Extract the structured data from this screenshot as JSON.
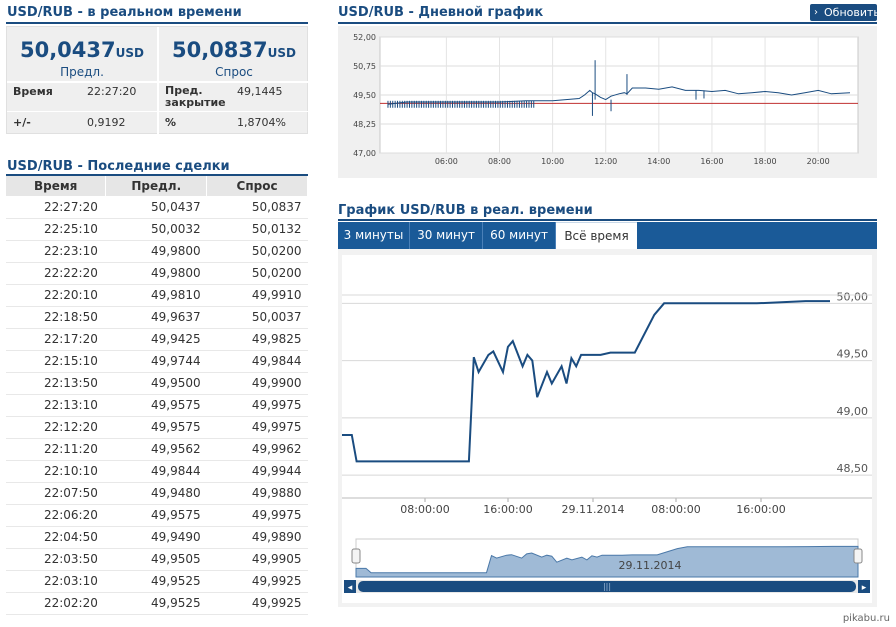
{
  "left": {
    "title_realtime": "USD/RUB - в реальном времени",
    "bid": {
      "value": "50,0437",
      "unit": "USD",
      "label": "Предл."
    },
    "ask": {
      "value": "50,0837",
      "unit": "USD",
      "label": "Спрос"
    },
    "time_label": "Время",
    "time_value": "22:27:20",
    "prev_close_label_1": "Пред.",
    "prev_close_label_2": "закрытие",
    "prev_close_value": "49,1445",
    "change_label": "+/-",
    "change_value": "0,9192",
    "pct_label": "%",
    "pct_value": "1,8704%",
    "title_trades": "USD/RUB - Последние сделки",
    "trades_headers": [
      "Время",
      "Предл.",
      "Спрос"
    ],
    "trades": [
      [
        "22:27:20",
        "50,0437",
        "50,0837"
      ],
      [
        "22:25:10",
        "50,0032",
        "50,0132"
      ],
      [
        "22:23:10",
        "49,9800",
        "50,0200"
      ],
      [
        "22:22:20",
        "49,9800",
        "50,0200"
      ],
      [
        "22:20:10",
        "49,9810",
        "49,9910"
      ],
      [
        "22:18:50",
        "49,9637",
        "50,0037"
      ],
      [
        "22:17:20",
        "49,9425",
        "49,9825"
      ],
      [
        "22:15:10",
        "49,9744",
        "49,9844"
      ],
      [
        "22:13:50",
        "49,9500",
        "49,9900"
      ],
      [
        "22:13:10",
        "49,9575",
        "49,9975"
      ],
      [
        "22:12:20",
        "49,9575",
        "49,9975"
      ],
      [
        "22:11:20",
        "49,9562",
        "49,9962"
      ],
      [
        "22:10:10",
        "49,9844",
        "49,9944"
      ],
      [
        "22:07:50",
        "49,9480",
        "49,9880"
      ],
      [
        "22:06:20",
        "49,9575",
        "49,9975"
      ],
      [
        "22:04:50",
        "49,9490",
        "49,9890"
      ],
      [
        "22:03:50",
        "49,9505",
        "49,9905"
      ],
      [
        "22:03:10",
        "49,9525",
        "49,9925"
      ],
      [
        "22:02:20",
        "49,9525",
        "49,9925"
      ]
    ]
  },
  "right": {
    "title_daily": "USD/RUB - Дневной график",
    "refresh_label": "Обновить",
    "title_realtime_chart": "График USD/RUB в реал. времени",
    "tabs": [
      "3 минуты",
      "30 минут",
      "60 минут",
      "Всё время"
    ],
    "active_tab": "Всё время",
    "navigator_date": "29.11.2014"
  },
  "chart_data": [
    {
      "type": "line",
      "y_ticks": [
        "52,00",
        "50,75",
        "49,50",
        "48,25",
        "47,00"
      ],
      "x_ticks": [
        "06:00",
        "08:00",
        "10:00",
        "12:00",
        "14:00",
        "16:00",
        "18:00",
        "20:00"
      ],
      "ylim": [
        47.0,
        52.0
      ],
      "reference_line": 49.14,
      "series": [
        {
          "x": [
            3.8,
            4.5,
            5,
            6,
            7,
            8,
            9,
            10,
            10.5,
            11,
            11.2,
            11.4,
            11.5,
            11.6,
            11.8,
            12,
            12.2,
            12.5,
            12.7,
            12.8,
            13,
            13.5,
            14,
            14.5,
            15,
            15.5,
            16,
            16.5,
            17,
            17.5,
            18,
            18.5,
            19,
            19.5,
            20,
            20.5,
            21.2
          ],
          "y": [
            49.1,
            49.2,
            49.2,
            49.2,
            49.2,
            49.2,
            49.25,
            49.25,
            49.3,
            49.35,
            49.5,
            49.7,
            49.6,
            49.55,
            49.4,
            49.3,
            49.45,
            49.55,
            49.6,
            49.55,
            49.8,
            49.8,
            49.75,
            49.85,
            49.7,
            49.7,
            49.65,
            49.7,
            49.55,
            49.6,
            49.65,
            49.6,
            49.5,
            49.6,
            49.7,
            49.55,
            49.6
          ]
        }
      ],
      "colors": {
        "line": "#1a4c80",
        "reference": "#c03030"
      }
    },
    {
      "type": "line",
      "y_ticks": [
        "50,00",
        "49,50",
        "49,00",
        "48,50"
      ],
      "x_ticks": [
        "08:00:00",
        "16:00:00",
        "29.11.2014",
        "08:00:00",
        "16:00:00"
      ],
      "ylim": [
        48.3,
        50.3
      ],
      "series": [
        {
          "x": [
            0,
            0.02,
            0.03,
            0.1,
            0.2,
            0.26,
            0.27,
            0.28,
            0.3,
            0.31,
            0.33,
            0.34,
            0.35,
            0.37,
            0.38,
            0.39,
            0.4,
            0.42,
            0.43,
            0.45,
            0.46,
            0.47,
            0.48,
            0.49,
            0.5,
            0.51,
            0.52,
            0.53,
            0.55,
            0.56,
            0.6,
            0.64,
            0.66,
            0.7,
            0.75,
            0.8,
            0.85,
            0.9,
            0.95,
            1.0
          ],
          "y": [
            48.85,
            48.85,
            48.62,
            48.62,
            48.62,
            48.62,
            49.53,
            49.4,
            49.55,
            49.58,
            49.4,
            49.62,
            49.67,
            49.45,
            49.55,
            49.5,
            49.18,
            49.4,
            49.3,
            49.45,
            49.3,
            49.52,
            49.45,
            49.55,
            49.55,
            49.55,
            49.55,
            49.55,
            49.57,
            49.57,
            49.57,
            49.9,
            50.0,
            50.0,
            50.0,
            50.0,
            50.0,
            50.01,
            50.02,
            50.02
          ]
        }
      ],
      "colors": {
        "line": "#1a4c80",
        "grid": "#d8d8d8",
        "navigator_fill": "#9fbad6"
      }
    }
  ],
  "colors": {
    "accent": "#1a4c80",
    "tab_bar": "#1a5a98",
    "header_bg": "#e6e6e6"
  }
}
